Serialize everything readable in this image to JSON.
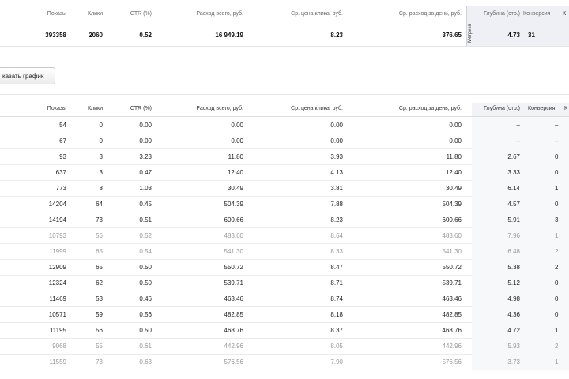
{
  "summary": {
    "headers": {
      "shows": "Показы",
      "clicks": "Клики",
      "ctr": "CTR (%)",
      "spend": "Расход всего, руб.",
      "cpc": "Ср. цена клика, руб.",
      "daily": "Ср. расход за день, руб.",
      "metrika": "Метрика",
      "depth": "Глубина (стр.)",
      "conv": "Конверсия"
    },
    "values": {
      "shows": "393358",
      "clicks": "2060",
      "ctr": "0.52",
      "spend": "16 949.19",
      "cpc": "8.23",
      "daily": "376.65",
      "depth": "4.73",
      "conv": "31"
    }
  },
  "chart_button": "казать график",
  "table": {
    "headers": {
      "shows": "Показы",
      "clicks": "Клики",
      "ctr": "CTR (%)",
      "spend": "Расход всего, руб.",
      "cpc": "Ср. цена клика, руб.",
      "daily": "Ср. расход за день, руб.",
      "depth": "Глубина (стр.)",
      "conv": "Конверсия"
    },
    "rows": [
      {
        "shows": "54",
        "clicks": "0",
        "ctr": "0.00",
        "spend": "0.00",
        "cpc": "0.00",
        "daily": "0.00",
        "depth": "–",
        "conv": "–",
        "dim": false
      },
      {
        "shows": "67",
        "clicks": "0",
        "ctr": "0.00",
        "spend": "0.00",
        "cpc": "0.00",
        "daily": "0.00",
        "depth": "–",
        "conv": "–",
        "dim": false
      },
      {
        "shows": "93",
        "clicks": "3",
        "ctr": "3.23",
        "spend": "11.80",
        "cpc": "3.93",
        "daily": "11.80",
        "depth": "2.67",
        "conv": "0",
        "dim": false
      },
      {
        "shows": "637",
        "clicks": "3",
        "ctr": "0.47",
        "spend": "12.40",
        "cpc": "4.13",
        "daily": "12.40",
        "depth": "3.33",
        "conv": "0",
        "dim": false
      },
      {
        "shows": "773",
        "clicks": "8",
        "ctr": "1.03",
        "spend": "30.49",
        "cpc": "3.81",
        "daily": "30.49",
        "depth": "6.14",
        "conv": "1",
        "dim": false
      },
      {
        "shows": "14204",
        "clicks": "64",
        "ctr": "0.45",
        "spend": "504.39",
        "cpc": "7.88",
        "daily": "504.39",
        "depth": "4.57",
        "conv": "0",
        "dim": false
      },
      {
        "shows": "14194",
        "clicks": "73",
        "ctr": "0.51",
        "spend": "600.66",
        "cpc": "8.23",
        "daily": "600.66",
        "depth": "5.91",
        "conv": "3",
        "dim": false
      },
      {
        "shows": "10793",
        "clicks": "56",
        "ctr": "0.52",
        "spend": "483.60",
        "cpc": "8.64",
        "daily": "483.60",
        "depth": "7.96",
        "conv": "1",
        "dim": true
      },
      {
        "shows": "11999",
        "clicks": "65",
        "ctr": "0.54",
        "spend": "541.30",
        "cpc": "8.33",
        "daily": "541.30",
        "depth": "6.48",
        "conv": "2",
        "dim": true
      },
      {
        "shows": "12909",
        "clicks": "65",
        "ctr": "0.50",
        "spend": "550.72",
        "cpc": "8.47",
        "daily": "550.72",
        "depth": "5.38",
        "conv": "2",
        "dim": false
      },
      {
        "shows": "12324",
        "clicks": "62",
        "ctr": "0.50",
        "spend": "539.71",
        "cpc": "8.71",
        "daily": "539.71",
        "depth": "5.12",
        "conv": "0",
        "dim": false
      },
      {
        "shows": "11469",
        "clicks": "53",
        "ctr": "0.46",
        "spend": "463.46",
        "cpc": "8.74",
        "daily": "463.46",
        "depth": "4.98",
        "conv": "0",
        "dim": false
      },
      {
        "shows": "10571",
        "clicks": "59",
        "ctr": "0.56",
        "spend": "482.85",
        "cpc": "8.18",
        "daily": "482.85",
        "depth": "4.36",
        "conv": "0",
        "dim": false
      },
      {
        "shows": "11195",
        "clicks": "56",
        "ctr": "0.50",
        "spend": "468.76",
        "cpc": "8.37",
        "daily": "468.76",
        "depth": "4.72",
        "conv": "1",
        "dim": false
      },
      {
        "shows": "9068",
        "clicks": "55",
        "ctr": "0.61",
        "spend": "442.96",
        "cpc": "8.05",
        "daily": "442.96",
        "depth": "5.93",
        "conv": "2",
        "dim": true
      },
      {
        "shows": "11559",
        "clicks": "73",
        "ctr": "0.63",
        "spend": "576.56",
        "cpc": "7.90",
        "daily": "576.56",
        "depth": "3.73",
        "conv": "1",
        "dim": true
      }
    ]
  }
}
